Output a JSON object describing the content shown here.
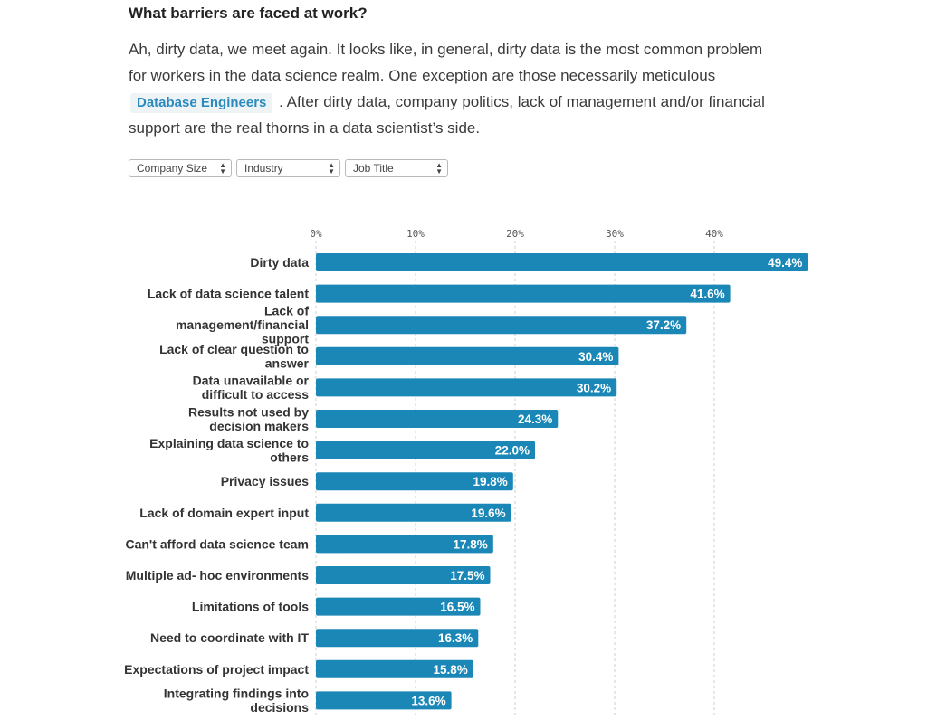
{
  "heading": "What barriers are faced at work?",
  "intro": {
    "before_tag": "Ah, dirty data, we meet again. It looks like, in general, dirty data is the most common problem for workers in the data science realm. One exception are those necessarily meticulous",
    "tag": "Database Engineers",
    "after_tag": ". After dirty data, company politics, lack of management and/or financial support are the real thorns in a data scientist’s side."
  },
  "filters": [
    {
      "label": "Company Size"
    },
    {
      "label": "Industry"
    },
    {
      "label": "Job Title"
    }
  ],
  "colors": {
    "bar": "#1a87b7",
    "tag_text": "#2a8abf",
    "tag_bg": "#eef4f6"
  },
  "chart_data": {
    "type": "bar",
    "orientation": "horizontal",
    "x_ticks": [
      "0%",
      "10%",
      "20%",
      "30%",
      "40%"
    ],
    "xlim": [
      0,
      50
    ],
    "grid": true,
    "categories": [
      "Dirty data",
      "Lack of data science talent",
      "Lack of management/financial support",
      "Lack of clear question to answer",
      "Data unavailable or difficult to access",
      "Results not used by decision makers",
      "Explaining data science to others",
      "Privacy issues",
      "Lack of domain expert input",
      "Can't afford data science team",
      "Multiple ad- hoc environments",
      "Limitations of tools",
      "Need to coordinate with IT",
      "Expectations of project impact",
      "Integrating findings into decisions"
    ],
    "values": [
      49.4,
      41.6,
      37.2,
      30.4,
      30.2,
      24.3,
      22.0,
      19.8,
      19.6,
      17.8,
      17.5,
      16.5,
      16.3,
      15.8,
      13.6
    ],
    "value_labels": [
      "49.4%",
      "41.6%",
      "37.2%",
      "30.4%",
      "30.2%",
      "24.3%",
      "22.0%",
      "19.8%",
      "19.6%",
      "17.8%",
      "17.5%",
      "16.5%",
      "16.3%",
      "15.8%",
      "13.6%"
    ]
  }
}
